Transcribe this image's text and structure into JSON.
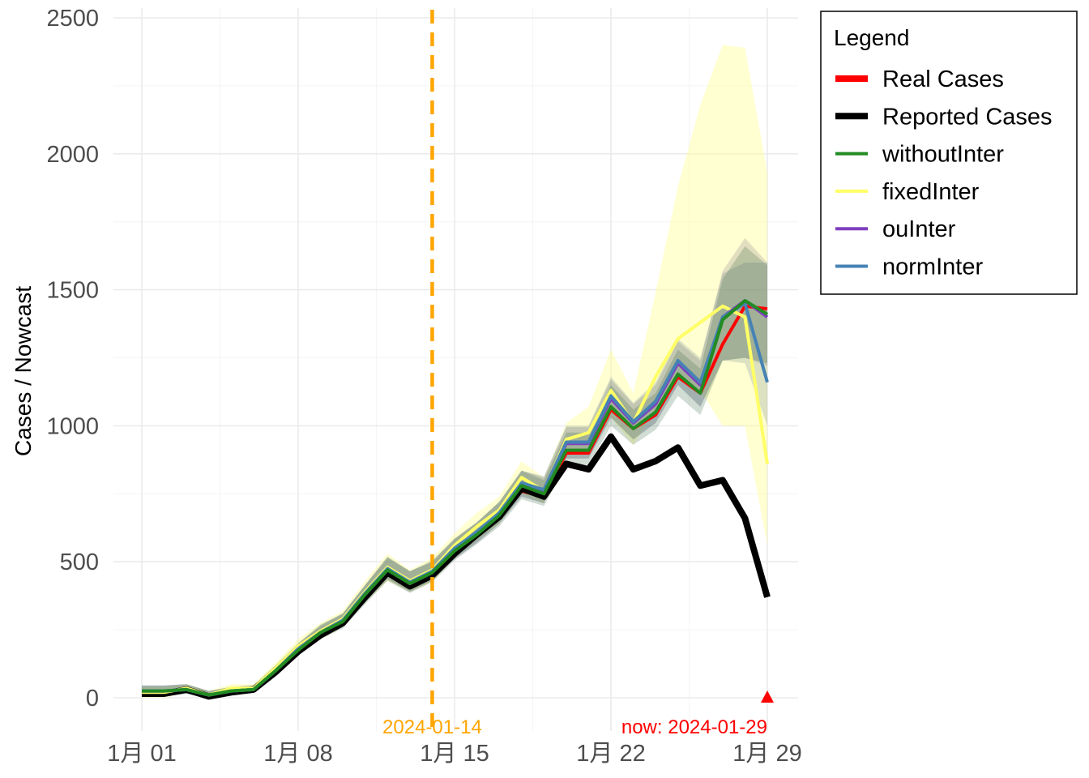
{
  "chart_data": {
    "type": "line",
    "title": "",
    "xlabel": "",
    "ylabel": "Cases / Nowcast",
    "x_tick_labels": [
      "1月 01",
      "1月 08",
      "1月 15",
      "1月 22",
      "1月 29"
    ],
    "y_ticks": [
      0,
      500,
      1000,
      1500,
      2000,
      2500
    ],
    "ylim": [
      -120,
      2540
    ],
    "grid": true,
    "legend_position": "right",
    "legend_title": "Legend",
    "dates": [
      "2024-01-01",
      "2024-01-02",
      "2024-01-03",
      "2024-01-04",
      "2024-01-05",
      "2024-01-06",
      "2024-01-07",
      "2024-01-08",
      "2024-01-09",
      "2024-01-10",
      "2024-01-11",
      "2024-01-12",
      "2024-01-13",
      "2024-01-14",
      "2024-01-15",
      "2024-01-16",
      "2024-01-17",
      "2024-01-18",
      "2024-01-19",
      "2024-01-20",
      "2024-01-21",
      "2024-01-22",
      "2024-01-23",
      "2024-01-24",
      "2024-01-25",
      "2024-01-26",
      "2024-01-27",
      "2024-01-28",
      "2024-01-29"
    ],
    "series": [
      {
        "name": "Real Cases",
        "color": "#ff0000",
        "values": [
          20,
          20,
          35,
          10,
          25,
          30,
          100,
          175,
          235,
          280,
          375,
          470,
          420,
          455,
          540,
          600,
          660,
          760,
          740,
          900,
          900,
          1060,
          990,
          1040,
          1180,
          1120,
          1300,
          1440,
          1430
        ]
      },
      {
        "name": "Reported Cases",
        "color": "#000000",
        "values": [
          15,
          15,
          30,
          5,
          20,
          30,
          95,
          170,
          230,
          275,
          370,
          460,
          410,
          450,
          530,
          600,
          665,
          770,
          740,
          860,
          840,
          960,
          840,
          870,
          920,
          780,
          800,
          660,
          370
        ]
      },
      {
        "name": "withoutInter",
        "color": "#228b22",
        "values": [
          25,
          25,
          30,
          10,
          25,
          30,
          100,
          175,
          240,
          280,
          380,
          470,
          420,
          460,
          540,
          600,
          670,
          780,
          750,
          910,
          910,
          1070,
          990,
          1050,
          1190,
          1120,
          1390,
          1460,
          1410
        ],
        "lower": [
          5,
          5,
          15,
          0,
          10,
          20,
          80,
          155,
          215,
          255,
          345,
          430,
          385,
          425,
          505,
          565,
          630,
          730,
          705,
          855,
          855,
          1000,
          930,
          985,
          1110,
          1040,
          1240,
          1250,
          1230
        ],
        "upper": [
          45,
          45,
          50,
          25,
          40,
          45,
          120,
          200,
          270,
          310,
          415,
          520,
          465,
          505,
          585,
          645,
          720,
          835,
          800,
          975,
          975,
          1150,
          1060,
          1120,
          1280,
          1210,
          1540,
          1660,
          1590
        ]
      },
      {
        "name": "fixedInter",
        "color": "#ffff66",
        "values": [
          20,
          20,
          35,
          10,
          35,
          35,
          110,
          190,
          245,
          290,
          390,
          480,
          430,
          470,
          560,
          630,
          690,
          810,
          760,
          950,
          975,
          1130,
          1010,
          1180,
          1320,
          1380,
          1440,
          1400,
          860
        ],
        "lower": [
          0,
          0,
          20,
          0,
          20,
          25,
          90,
          165,
          215,
          260,
          350,
          430,
          390,
          425,
          515,
          580,
          640,
          750,
          715,
          890,
          900,
          1030,
          930,
          1060,
          1170,
          1130,
          1000,
          1000,
          560
        ],
        "upper": [
          40,
          40,
          50,
          25,
          50,
          50,
          130,
          215,
          275,
          320,
          430,
          530,
          470,
          515,
          605,
          680,
          740,
          870,
          810,
          1010,
          1070,
          1280,
          1120,
          1490,
          1880,
          2180,
          2400,
          2390,
          1930
        ]
      },
      {
        "name": "ouInter",
        "color": "#7f3fbf",
        "values": [
          25,
          25,
          30,
          10,
          25,
          30,
          100,
          180,
          240,
          285,
          380,
          470,
          420,
          460,
          545,
          605,
          675,
          785,
          760,
          935,
          935,
          1100,
          1010,
          1080,
          1230,
          1150,
          1400,
          1460,
          1400
        ],
        "lower": [
          5,
          5,
          15,
          0,
          10,
          20,
          80,
          160,
          220,
          260,
          350,
          435,
          390,
          430,
          510,
          570,
          640,
          740,
          715,
          880,
          880,
          1030,
          950,
          1010,
          1150,
          1070,
          1240,
          1250,
          1220
        ],
        "upper": [
          45,
          45,
          50,
          25,
          40,
          45,
          120,
          200,
          265,
          310,
          415,
          515,
          465,
          500,
          585,
          645,
          720,
          835,
          810,
          995,
          995,
          1170,
          1080,
          1150,
          1310,
          1240,
          1570,
          1690,
          1600
        ]
      },
      {
        "name": "normInter",
        "color": "#4682b4",
        "values": [
          25,
          25,
          30,
          10,
          25,
          30,
          100,
          180,
          240,
          285,
          385,
          475,
          425,
          465,
          550,
          610,
          680,
          790,
          765,
          940,
          940,
          1110,
          1015,
          1090,
          1240,
          1160,
          1400,
          1450,
          1160
        ],
        "lower": [
          5,
          5,
          15,
          0,
          10,
          20,
          80,
          160,
          220,
          260,
          350,
          435,
          390,
          430,
          510,
          570,
          640,
          740,
          715,
          880,
          880,
          1030,
          950,
          1010,
          1150,
          1070,
          1240,
          1230,
          1000
        ],
        "upper": [
          45,
          45,
          50,
          25,
          40,
          45,
          120,
          200,
          265,
          310,
          415,
          515,
          465,
          500,
          585,
          645,
          720,
          835,
          815,
          1000,
          1000,
          1180,
          1085,
          1160,
          1320,
          1250,
          1560,
          1600,
          1600
        ]
      }
    ],
    "annotations": [
      {
        "date": "2024-01-14",
        "text": "2024-01-14",
        "color": "#ffa500",
        "style": "dashed-vertical-line"
      },
      {
        "date": "2024-01-29",
        "text": "now: 2024-01-29",
        "color": "#ff0000",
        "marker": "triangle",
        "marker_value": 0
      }
    ]
  }
}
